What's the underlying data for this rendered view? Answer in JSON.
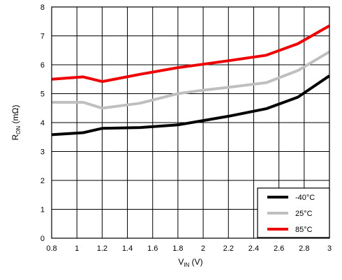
{
  "chart_data": {
    "type": "line",
    "xlabel": {
      "main": "V",
      "sub": "IN",
      "unit": " (V)"
    },
    "ylabel": {
      "main": "R",
      "sub": "ON",
      "unit": " (mΩ)"
    },
    "xlim": [
      0.8,
      3.0
    ],
    "ylim": [
      0,
      8
    ],
    "x_ticks": [
      "0.8",
      "1",
      "1.2",
      "1.4",
      "1.6",
      "1.8",
      "2",
      "2.2",
      "2.4",
      "2.6",
      "2.8",
      "3"
    ],
    "y_ticks": [
      "0",
      "1",
      "2",
      "3",
      "4",
      "5",
      "6",
      "7",
      "8"
    ],
    "grid": true,
    "legend_position": "bottom-right",
    "series": [
      {
        "name": "-40°C",
        "color": "#000000",
        "points": [
          [
            0.8,
            3.58
          ],
          [
            1.05,
            3.65
          ],
          [
            1.2,
            3.8
          ],
          [
            1.5,
            3.83
          ],
          [
            1.8,
            3.92
          ],
          [
            2.0,
            4.07
          ],
          [
            2.2,
            4.22
          ],
          [
            2.5,
            4.48
          ],
          [
            2.75,
            4.88
          ],
          [
            3.0,
            5.62
          ]
        ]
      },
      {
        "name": "25°C",
        "color": "#bfbfbf",
        "points": [
          [
            0.8,
            4.7
          ],
          [
            1.05,
            4.7
          ],
          [
            1.2,
            4.5
          ],
          [
            1.5,
            4.67
          ],
          [
            1.8,
            5.0
          ],
          [
            2.0,
            5.12
          ],
          [
            2.2,
            5.22
          ],
          [
            2.5,
            5.38
          ],
          [
            2.75,
            5.8
          ],
          [
            3.0,
            6.45
          ]
        ]
      },
      {
        "name": "85°C",
        "color": "#ee0000",
        "points": [
          [
            0.8,
            5.5
          ],
          [
            1.05,
            5.58
          ],
          [
            1.2,
            5.42
          ],
          [
            1.5,
            5.67
          ],
          [
            1.8,
            5.9
          ],
          [
            2.0,
            6.02
          ],
          [
            2.2,
            6.14
          ],
          [
            2.5,
            6.33
          ],
          [
            2.75,
            6.73
          ],
          [
            3.0,
            7.35
          ]
        ]
      }
    ]
  }
}
